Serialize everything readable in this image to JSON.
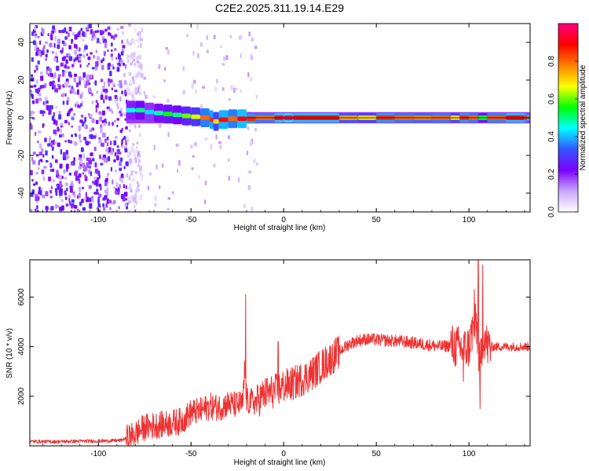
{
  "title": "C2E2.2025.311.19.14.E29",
  "colorbar": {
    "label": "Normalized spectral amplitude",
    "ticks": [
      "0.0",
      "0.2",
      "0.4",
      "0.6",
      "0.8"
    ],
    "tick_values": [
      0.0,
      0.2,
      0.4,
      0.6,
      0.8
    ],
    "range": [
      0,
      1
    ],
    "colors": [
      "#ffffff",
      "#c9a6ff",
      "#7b00ff",
      "#3355ff",
      "#00ffff",
      "#00ff00",
      "#ffff00",
      "#ff7f00",
      "#ff0000",
      "#ff007f"
    ]
  },
  "chart_data": [
    {
      "type": "heatmap",
      "title": "C2E2.2025.311.19.14.E29",
      "xlabel": "Height of straight line (km)",
      "ylabel": "Frequency (Hz)",
      "xlim": [
        -137,
        133
      ],
      "ylim": [
        -50,
        50
      ],
      "x_ticks": [
        -100,
        -50,
        0,
        50,
        100
      ],
      "y_ticks": [
        -40,
        -20,
        0,
        20,
        40
      ],
      "x_tick_labels": [
        "-100",
        "-50",
        "0",
        "50",
        "100"
      ],
      "y_tick_labels": [
        "-40",
        "-20",
        "0",
        "20",
        "40"
      ],
      "noise_region_x": [
        -137,
        -85
      ],
      "carrier_line_hz": 0,
      "ridge_points": [
        {
          "x": -85,
          "y": 4,
          "amp": 0.45
        },
        {
          "x": -80,
          "y": 4,
          "amp": 0.5
        },
        {
          "x": -75,
          "y": 3,
          "amp": 0.42
        },
        {
          "x": -70,
          "y": 2.5,
          "amp": 0.48
        },
        {
          "x": -65,
          "y": 2,
          "amp": 0.55
        },
        {
          "x": -60,
          "y": 1.5,
          "amp": 0.5
        },
        {
          "x": -55,
          "y": 1,
          "amp": 0.6
        },
        {
          "x": -50,
          "y": 0.5,
          "amp": 0.65
        },
        {
          "x": -45,
          "y": 0,
          "amp": 0.8
        },
        {
          "x": -40,
          "y": -1,
          "amp": 0.85
        },
        {
          "x": -38,
          "y": -2,
          "amp": 0.7
        },
        {
          "x": -35,
          "y": -1,
          "amp": 0.88
        },
        {
          "x": -30,
          "y": -0.5,
          "amp": 0.8
        },
        {
          "x": -25,
          "y": -0.5,
          "amp": 0.9
        },
        {
          "x": -20,
          "y": -0.5,
          "amp": 0.85
        },
        {
          "x": -15,
          "y": 0,
          "amp": 0.8
        },
        {
          "x": -5,
          "y": 0,
          "amp": 0.92
        },
        {
          "x": 0,
          "y": 0,
          "amp": 0.95
        },
        {
          "x": 5,
          "y": 0,
          "amp": 0.9
        },
        {
          "x": 30,
          "y": 0,
          "amp": 0.75
        },
        {
          "x": 40,
          "y": 0,
          "amp": 0.7
        },
        {
          "x": 50,
          "y": 0,
          "amp": 0.85
        },
        {
          "x": 60,
          "y": 0,
          "amp": 0.8
        },
        {
          "x": 70,
          "y": 0,
          "amp": 0.78
        },
        {
          "x": 80,
          "y": 0,
          "amp": 0.8
        },
        {
          "x": 90,
          "y": 0,
          "amp": 0.7
        },
        {
          "x": 95,
          "y": 0,
          "amp": 0.85
        },
        {
          "x": 100,
          "y": 0,
          "amp": 0.8
        },
        {
          "x": 105,
          "y": 0,
          "amp": 0.55
        },
        {
          "x": 110,
          "y": 0,
          "amp": 0.82
        },
        {
          "x": 120,
          "y": 0,
          "amp": 0.9
        },
        {
          "x": 130,
          "y": 0,
          "amp": 0.85
        }
      ]
    },
    {
      "type": "line",
      "xlabel": "Height of straight line (km)",
      "ylabel": "SNR (10 * v/v)",
      "xlim": [
        -137,
        133
      ],
      "ylim": [
        0,
        7500
      ],
      "x_ticks": [
        -100,
        -50,
        0,
        50,
        100
      ],
      "y_ticks": [
        2000,
        4000,
        6000
      ],
      "x_tick_labels": [
        "-100",
        "-50",
        "0",
        "50",
        "100"
      ],
      "y_tick_labels": [
        "2000",
        "4000",
        "6000"
      ],
      "color": "#ee3333",
      "series": [
        {
          "name": "SNR",
          "x": [
            -137,
            -125,
            -110,
            -95,
            -88,
            -82,
            -75,
            -70,
            -62,
            -55,
            -50,
            -45,
            -40,
            -35,
            -30,
            -26,
            -22,
            -21,
            -20,
            -15,
            -10,
            -5,
            0,
            5,
            10,
            15,
            20,
            25,
            30,
            35,
            40,
            45,
            50,
            55,
            60,
            65,
            70,
            75,
            80,
            85,
            90,
            95,
            98,
            100,
            102,
            104,
            106,
            108,
            110,
            115,
            120,
            125,
            133
          ],
          "values": [
            180,
            170,
            190,
            200,
            220,
            400,
            750,
            820,
            900,
            1000,
            1350,
            1400,
            1600,
            1550,
            1700,
            1650,
            1700,
            3200,
            1800,
            1750,
            2100,
            2200,
            2400,
            2500,
            2700,
            2900,
            3200,
            3500,
            3800,
            4100,
            4250,
            4300,
            4280,
            4250,
            4230,
            4200,
            4150,
            4100,
            4050,
            4000,
            4050,
            3950,
            3900,
            4000,
            4700,
            4900,
            3200,
            4500,
            4000,
            4000,
            4000,
            4000,
            4000
          ]
        }
      ],
      "spikes": [
        {
          "x": -20.5,
          "value": 6100
        },
        {
          "x": -3,
          "value": 4200
        },
        {
          "x": 103,
          "value": 6300
        },
        {
          "x": 105,
          "value": 7500
        },
        {
          "x": 106,
          "value": 1500
        },
        {
          "x": 107.5,
          "value": 7300
        },
        {
          "x": 97,
          "value": 2600
        }
      ]
    }
  ]
}
